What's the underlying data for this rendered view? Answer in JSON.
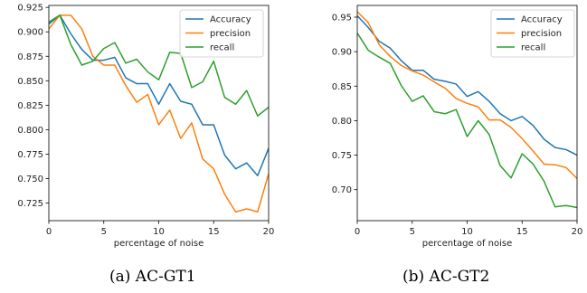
{
  "figures": [
    {
      "caption": "(a) AC-GT1",
      "chart_data": {
        "type": "line",
        "title": "",
        "xlabel": "percentage of noise",
        "ylabel": "",
        "xlim": [
          0,
          20
        ],
        "ylim": [
          0.707,
          0.927
        ],
        "xticks": [
          0,
          5,
          10,
          15,
          20
        ],
        "yticks": [
          0.725,
          0.75,
          0.775,
          0.8,
          0.825,
          0.85,
          0.875,
          0.9,
          0.925
        ],
        "ytick_labels": [
          "0.725",
          "0.750",
          "0.775",
          "0.800",
          "0.825",
          "0.850",
          "0.875",
          "0.900",
          "0.925"
        ],
        "grid": false,
        "legend_position": "top-right",
        "x": [
          0,
          1,
          2,
          3,
          4,
          5,
          6,
          7,
          8,
          9,
          10,
          11,
          12,
          13,
          14,
          15,
          16,
          17,
          18,
          19,
          20
        ],
        "series": [
          {
            "name": "Accuracy",
            "color": "#1f77b4",
            "values": [
              0.908,
              0.917,
              0.898,
              0.882,
              0.871,
              0.871,
              0.874,
              0.853,
              0.847,
              0.847,
              0.826,
              0.847,
              0.829,
              0.826,
              0.805,
              0.805,
              0.774,
              0.76,
              0.766,
              0.753,
              0.781
            ]
          },
          {
            "name": "precision",
            "color": "#ff7f0e",
            "values": [
              0.903,
              0.917,
              0.917,
              0.903,
              0.875,
              0.866,
              0.866,
              0.845,
              0.828,
              0.836,
              0.805,
              0.82,
              0.791,
              0.807,
              0.77,
              0.76,
              0.734,
              0.716,
              0.719,
              0.716,
              0.755
            ]
          },
          {
            "name": "recall",
            "color": "#2ca02c",
            "values": [
              0.91,
              0.917,
              0.887,
              0.866,
              0.87,
              0.883,
              0.889,
              0.868,
              0.872,
              0.859,
              0.851,
              0.879,
              0.878,
              0.843,
              0.849,
              0.87,
              0.833,
              0.826,
              0.84,
              0.814,
              0.823
            ]
          }
        ]
      }
    },
    {
      "caption": "(b) AC-GT2",
      "chart_data": {
        "type": "line",
        "title": "",
        "xlabel": "percentage of noise",
        "ylabel": "",
        "xlim": [
          0,
          20
        ],
        "ylim": [
          0.655,
          0.967
        ],
        "xticks": [
          0,
          5,
          10,
          15,
          20
        ],
        "yticks": [
          0.7,
          0.75,
          0.8,
          0.85,
          0.9,
          0.95
        ],
        "ytick_labels": [
          "0.70",
          "0.75",
          "0.80",
          "0.85",
          "0.90",
          "0.95"
        ],
        "grid": false,
        "legend_position": "top-right",
        "x": [
          0,
          1,
          2,
          3,
          4,
          5,
          6,
          7,
          8,
          9,
          10,
          11,
          12,
          13,
          14,
          15,
          16,
          17,
          18,
          19,
          20
        ],
        "series": [
          {
            "name": "Accuracy",
            "color": "#1f77b4",
            "values": [
              0.952,
              0.935,
              0.915,
              0.905,
              0.887,
              0.873,
              0.873,
              0.86,
              0.857,
              0.853,
              0.835,
              0.842,
              0.828,
              0.81,
              0.8,
              0.806,
              0.793,
              0.773,
              0.761,
              0.758,
              0.75
            ]
          },
          {
            "name": "precision",
            "color": "#ff7f0e",
            "values": [
              0.958,
              0.942,
              0.91,
              0.893,
              0.88,
              0.872,
              0.866,
              0.856,
              0.847,
              0.832,
              0.825,
              0.82,
              0.801,
              0.801,
              0.79,
              0.774,
              0.756,
              0.737,
              0.736,
              0.732,
              0.716
            ]
          },
          {
            "name": "recall",
            "color": "#2ca02c",
            "values": [
              0.927,
              0.902,
              0.892,
              0.883,
              0.851,
              0.828,
              0.836,
              0.813,
              0.81,
              0.816,
              0.777,
              0.8,
              0.78,
              0.735,
              0.717,
              0.752,
              0.737,
              0.712,
              0.675,
              0.677,
              0.674
            ]
          }
        ]
      }
    }
  ]
}
